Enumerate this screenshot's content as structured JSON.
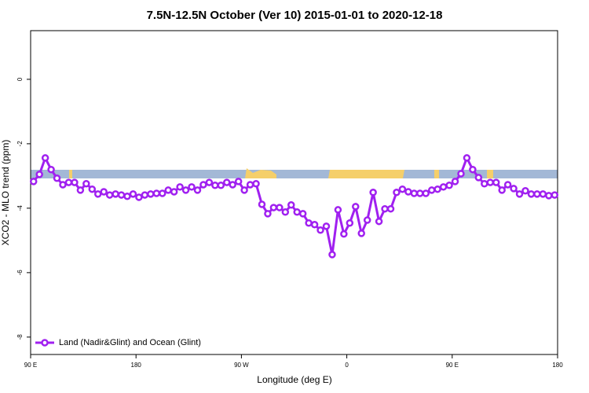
{
  "chart_data": {
    "type": "line",
    "title": "7.5N-12.5N October (Ver 10)   2015-01-01 to 2020-12-18",
    "x_label": "Longitude (deg E)",
    "y_label": "XCO2 - MLO trend (ppm)",
    "x": [
      92.5,
      97.5,
      102.5,
      107.5,
      112.5,
      117.5,
      122.5,
      127.5,
      132.5,
      137.5,
      142.5,
      147.5,
      152.5,
      157.5,
      162.5,
      167.5,
      172.5,
      177.5,
      182.5,
      187.5,
      192.5,
      197.5,
      202.5,
      207.5,
      212.5,
      217.5,
      222.5,
      227.5,
      232.5,
      237.5,
      242.5,
      247.5,
      252.5,
      257.5,
      262.5,
      267.5,
      272.5,
      277.5,
      282.5,
      287.5,
      292.5,
      297.5,
      302.5,
      307.5,
      312.5,
      317.5,
      322.5,
      327.5,
      332.5,
      337.5,
      342.5,
      347.5,
      352.5,
      357.5,
      362.5,
      367.5,
      372.5,
      377.5,
      382.5,
      387.5,
      392.5,
      397.5,
      402.5,
      407.5,
      412.5,
      417.5,
      422.5,
      427.5,
      432.5,
      437.5,
      442.5,
      447.5,
      452.5,
      457.5,
      462.5,
      467.5,
      472.5,
      477.5,
      482.5,
      487.5,
      492.5,
      497.5,
      502.5,
      507.5,
      512.5,
      517.5,
      522.5,
      527.5,
      532.5,
      537.5
    ],
    "series": [
      {
        "name": "Land (Nadir&Glint) and Ocean (Glint)",
        "color": "#a020f0",
        "values": [
          -3.17,
          -2.95,
          -2.44,
          -2.8,
          -3.07,
          -3.27,
          -3.2,
          -3.2,
          -3.44,
          -3.24,
          -3.41,
          -3.56,
          -3.49,
          -3.59,
          -3.56,
          -3.59,
          -3.63,
          -3.56,
          -3.66,
          -3.59,
          -3.56,
          -3.54,
          -3.54,
          -3.44,
          -3.49,
          -3.34,
          -3.44,
          -3.34,
          -3.44,
          -3.27,
          -3.2,
          -3.29,
          -3.29,
          -3.2,
          -3.27,
          -3.17,
          -3.44,
          -3.27,
          -3.24,
          -3.88,
          -4.17,
          -3.98,
          -3.98,
          -4.12,
          -3.9,
          -4.12,
          -4.17,
          -4.46,
          -4.51,
          -4.68,
          -4.56,
          -5.44,
          -4.05,
          -4.8,
          -4.46,
          -3.95,
          -4.78,
          -4.37,
          -3.51,
          -4.41,
          -4.02,
          -4.02,
          -3.51,
          -3.41,
          -3.49,
          -3.54,
          -3.54,
          -3.54,
          -3.44,
          -3.41,
          -3.34,
          -3.29,
          -3.17,
          -2.93,
          -2.44,
          -2.8,
          -3.05,
          -3.24,
          -3.2,
          -3.2,
          -3.44,
          -3.27,
          -3.39,
          -3.56,
          -3.46,
          -3.56,
          -3.56,
          -3.56,
          -3.61,
          -3.59
        ]
      }
    ],
    "xlim": [
      90,
      540
    ],
    "xticks": [
      {
        "value": 90,
        "label": "90 E"
      },
      180,
      {
        "value": 270,
        "label": "90 W"
      },
      {
        "value": 360,
        "label": "0"
      },
      {
        "value": 450,
        "label": "90 E"
      },
      {
        "value": 540,
        "label": "180"
      }
    ],
    "ylim": [
      -8.54,
      1.51
    ],
    "yticks": [
      0,
      -2,
      -4,
      -6,
      -8
    ],
    "legend": "bottom-left"
  }
}
